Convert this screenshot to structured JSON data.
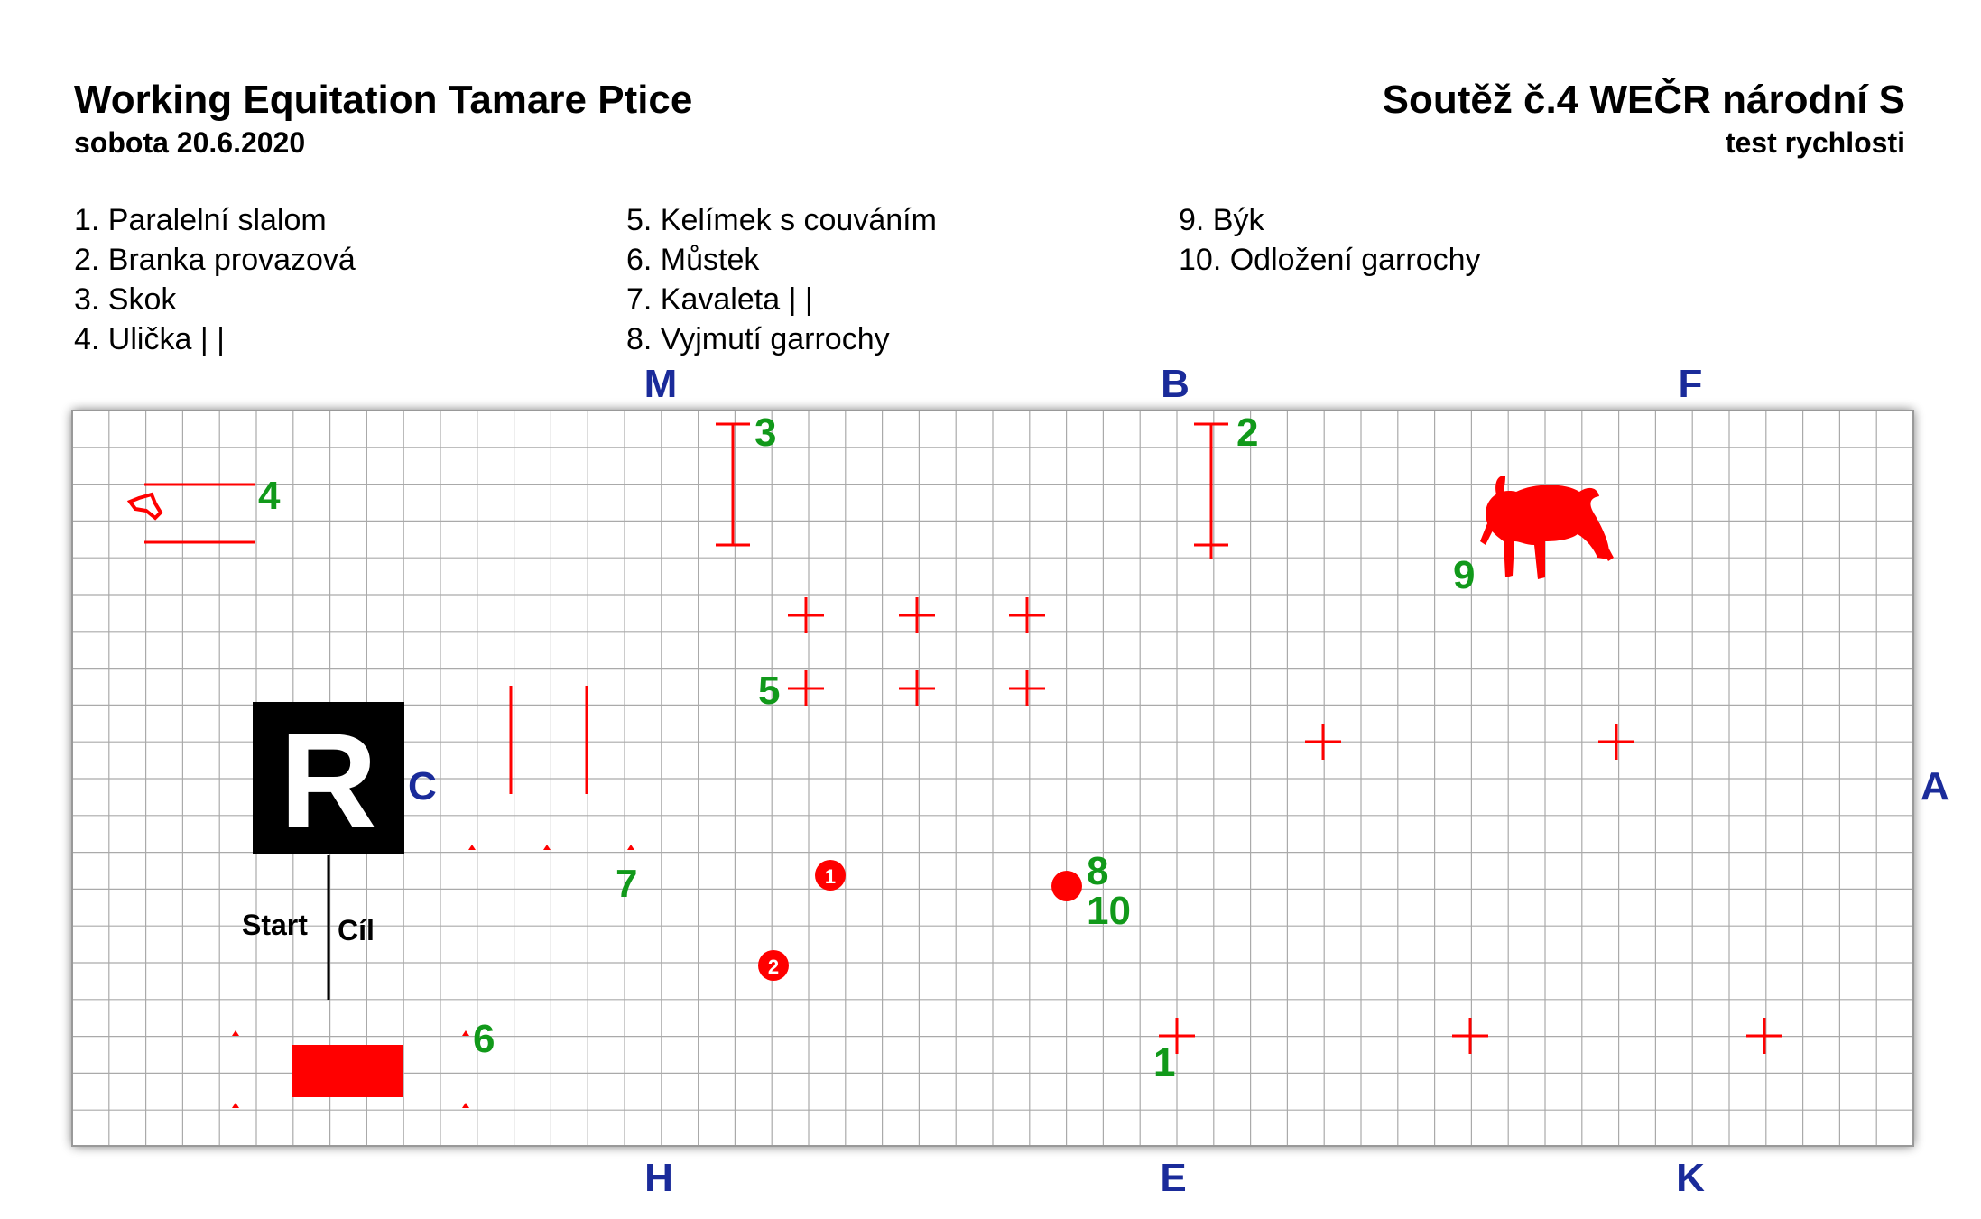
{
  "header": {
    "title_left": "Working Equitation Tamare Ptice",
    "date": "sobota 20.6.2020",
    "title_right": "Soutěž č.4 WEČR národní S",
    "subtitle_right": "test rychlosti"
  },
  "legend": {
    "col1": [
      "1. Paralelní slalom",
      "2. Branka provazová",
      "3. Skok",
      "4. Ulička | |"
    ],
    "col2": [
      "5. Kelímek s couváním",
      "6. Můstek",
      "7. Kavaleta | |",
      "8. Vyjmutí garrochy"
    ],
    "col3": [
      "9. Býk",
      "10. Odložení garrochy"
    ]
  },
  "arena_letters": {
    "M": "M",
    "B": "B",
    "F": "F",
    "H": "H",
    "E": "E",
    "K": "K",
    "C": "C",
    "A": "A"
  },
  "judge_box": {
    "letter": "R"
  },
  "start_finish": {
    "start": "Start",
    "finish": "Cíl"
  },
  "obstacle_numbers": [
    "1",
    "2",
    "3",
    "4",
    "5",
    "6",
    "7",
    "8",
    "10",
    "9"
  ],
  "barrel_labels": {
    "b1": "1",
    "b2": "2"
  },
  "colors": {
    "obstacle": "#ff0000",
    "number": "#11991a",
    "letter": "#1a2b9a",
    "grid": "#aaaaaa"
  },
  "icons": {
    "bull": "bull-icon"
  }
}
